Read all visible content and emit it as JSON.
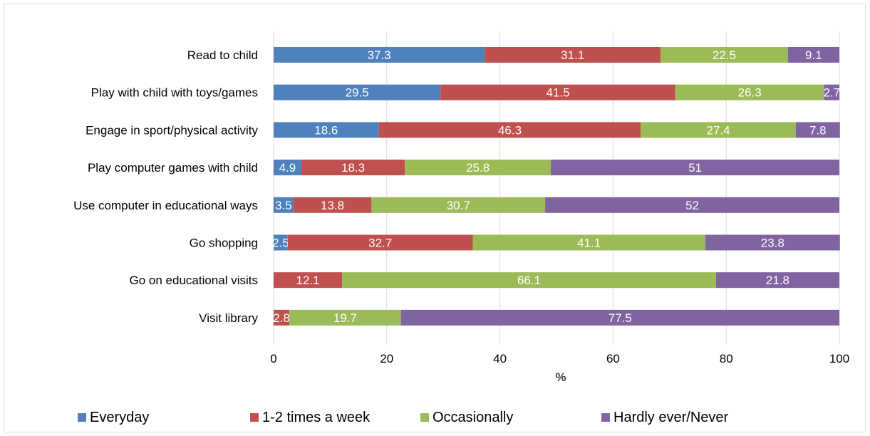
{
  "chart_data": {
    "type": "bar",
    "orientation": "horizontal",
    "stacked": true,
    "categories": [
      "Read to child",
      "Play with child with toys/games",
      "Engage in sport/physical activity",
      "Play computer games with child",
      "Use computer in educational ways",
      "Go shopping",
      "Go on educational visits",
      "Visit library"
    ],
    "series": [
      {
        "name": "Everyday",
        "color": "#4f81bd",
        "values": [
          37.3,
          29.5,
          18.6,
          4.9,
          3.5,
          2.5,
          0,
          0
        ]
      },
      {
        "name": "1-2 times a week",
        "color": "#c0504d",
        "values": [
          31.1,
          41.5,
          46.3,
          18.3,
          13.8,
          32.7,
          12.1,
          2.8
        ]
      },
      {
        "name": "Occasionally",
        "color": "#9bbb59",
        "values": [
          22.5,
          26.3,
          27.4,
          25.8,
          30.7,
          41.1,
          66.1,
          19.7
        ]
      },
      {
        "name": "Hardly ever/Never",
        "color": "#8064a2",
        "values": [
          9.1,
          2.7,
          7.8,
          51,
          52,
          23.8,
          21.8,
          77.5
        ]
      }
    ],
    "xlabel": "%",
    "xlim": [
      0,
      100
    ],
    "xticks": [
      "0",
      "20",
      "40",
      "60",
      "80",
      "100"
    ],
    "grid": "vertical",
    "legend_position": "bottom"
  }
}
